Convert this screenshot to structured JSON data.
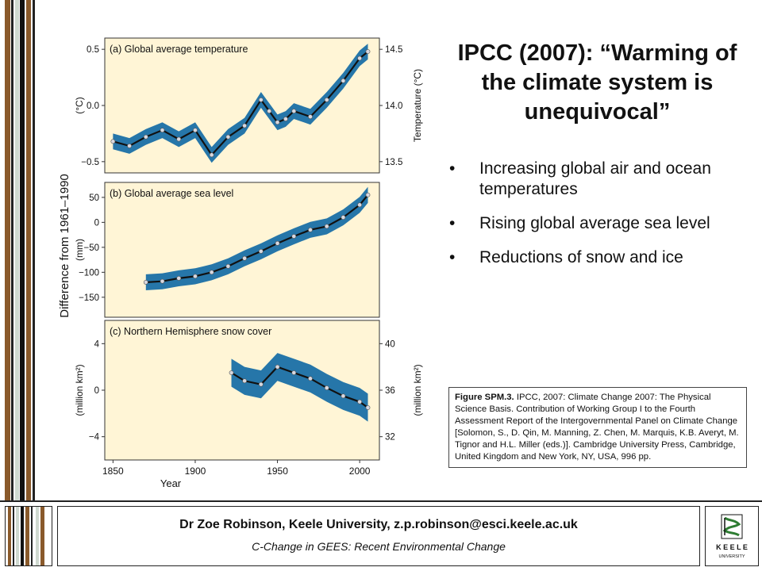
{
  "slide": {
    "title": "IPCC (2007): “Warming of the climate system is unequivocal”",
    "bullets": [
      "Increasing global air and ocean temperatures",
      "Rising global average sea level",
      "Reductions of snow and ice"
    ],
    "caption": {
      "lead": "Figure SPM.3.",
      "text": " IPCC, 2007: Climate Change 2007: The Physical Science Basis. Contribution of Working Group I to the Fourth Assessment Report of the Intergovernmental Panel on Climate Change [Solomon, S., D. Qin, M. Manning, Z. Chen, M. Marquis, K.B. Averyt, M. Tignor and H.L. Miller (eds.)]. Cambridge University Press, Cambridge, United Kingdom and New York, NY, USA, 996 pp."
    }
  },
  "footer": {
    "author": "Dr Zoe Robinson, Keele University, z.p.robinson@esci.keele.ac.uk",
    "course": "C-Change in GEES: Recent Environmental Change"
  },
  "logo": {
    "name": "K E E L E",
    "sub": "UNIVERSITY",
    "icon": "keele-crest-icon"
  },
  "colors": {
    "band": "#1a6fa6",
    "panel_bg": "#fff5d6",
    "stripe_brown": "#8a5a2b",
    "curve": "#111111"
  },
  "chart_data": [
    {
      "type": "line",
      "title": "(a) Global average temperature",
      "ylabel": "(°C)",
      "y2label": "Temperature (°C)",
      "ylim": [
        -0.6,
        0.6
      ],
      "yticks": [
        "0.5",
        "0.0",
        "−0.5"
      ],
      "y2ticks": [
        "14.5",
        "14.0",
        "13.5"
      ],
      "series": [
        {
          "x": [
            1850,
            1860,
            1870,
            1880,
            1890,
            1900,
            1910,
            1920,
            1930,
            1940,
            1945,
            1950,
            1955,
            1960,
            1970,
            1980,
            1990,
            2000,
            2005
          ],
          "values": [
            -0.32,
            -0.36,
            -0.28,
            -0.22,
            -0.3,
            -0.22,
            -0.44,
            -0.28,
            -0.18,
            0.05,
            -0.05,
            -0.15,
            -0.12,
            -0.05,
            -0.1,
            0.05,
            0.22,
            0.42,
            0.48
          ]
        }
      ]
    },
    {
      "type": "line",
      "title": "(b) Global average sea level",
      "ylabel": "(mm)",
      "ylim": [
        -190,
        80
      ],
      "yticks": [
        "50",
        "0",
        "−50",
        "−100",
        "−150"
      ],
      "series": [
        {
          "x": [
            1870,
            1880,
            1890,
            1900,
            1910,
            1920,
            1930,
            1940,
            1950,
            1960,
            1970,
            1980,
            1990,
            2000,
            2005
          ],
          "values": [
            -120,
            -118,
            -112,
            -108,
            -100,
            -88,
            -72,
            -58,
            -42,
            -28,
            -15,
            -8,
            10,
            35,
            55
          ]
        }
      ]
    },
    {
      "type": "line",
      "title": "(c) Northern Hemisphere snow cover",
      "ylabel": "(million km²)",
      "y2label": "(million km²)",
      "ylim": [
        -6,
        6
      ],
      "yticks": [
        "4",
        "0",
        "−4"
      ],
      "y2ticks": [
        "40",
        "36",
        "32"
      ],
      "xlabel": "Year",
      "xticks": [
        "1850",
        "1900",
        "1950",
        "2000"
      ],
      "series": [
        {
          "x": [
            1922,
            1930,
            1940,
            1950,
            1960,
            1970,
            1980,
            1990,
            2000,
            2005
          ],
          "values": [
            1.5,
            0.8,
            0.5,
            2.0,
            1.5,
            1.0,
            0.2,
            -0.5,
            -1.0,
            -1.5
          ]
        }
      ]
    }
  ],
  "chart_shared_ylabel": "Difference from 1961–1990"
}
